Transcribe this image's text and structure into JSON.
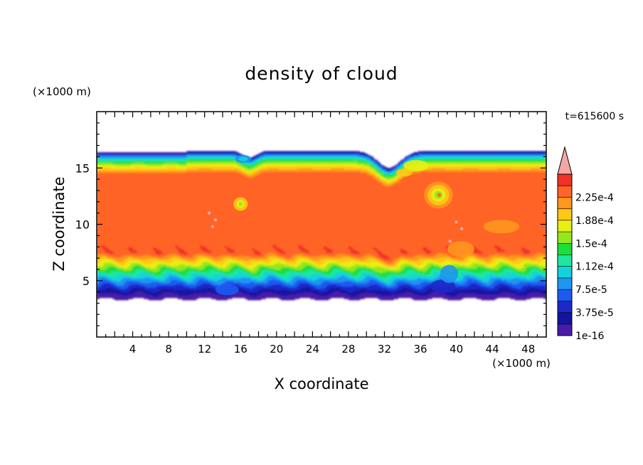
{
  "chart_data": {
    "type": "heatmap",
    "title": "density of cloud",
    "time_label": "t=615600 s",
    "xlabel": "X coordinate",
    "ylabel": "Z coordinate",
    "x_unit": "(×1000 m)",
    "z_unit": "(×1000 m)",
    "xlim": [
      0,
      50
    ],
    "ylim": [
      0,
      20
    ],
    "x_ticks": [
      4,
      8,
      12,
      16,
      20,
      24,
      28,
      32,
      36,
      40,
      44,
      48
    ],
    "y_ticks": [
      5,
      10,
      15
    ],
    "colorbar": {
      "labels": [
        "2.25e-4",
        "1.88e-4",
        "1.5e-4",
        "1.12e-4",
        "7.5e-5",
        "3.75e-5",
        "1e-16"
      ],
      "levels": [
        1e-16,
        1.875e-05,
        3.75e-05,
        5.625e-05,
        7.5e-05,
        9.375e-05,
        0.0001125,
        0.00013125,
        0.00015,
        0.00016875,
        0.0001875,
        0.00020625,
        0.000225,
        0.00024375
      ],
      "colors": [
        "#4b1aa8",
        "#1414a0",
        "#1e28c8",
        "#1e5af0",
        "#1e96f0",
        "#14d2dc",
        "#1ee6a0",
        "#1ede3c",
        "#96e61e",
        "#e6f014",
        "#ffc814",
        "#ff961e",
        "#ff6428",
        "#f03228"
      ],
      "extend_color": "#f4a6a6"
    },
    "field": {
      "cloud_base_km": 3.4,
      "cloud_top_km": 16.5,
      "core_range_km": [
        7.5,
        14.5
      ],
      "peak_density": 0.00024
    }
  }
}
